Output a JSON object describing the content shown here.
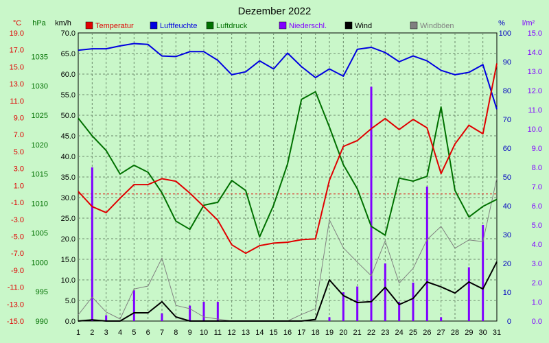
{
  "chart_data": {
    "type": "line",
    "title": "Dezember 2022",
    "x": [
      1,
      2,
      3,
      4,
      5,
      6,
      7,
      8,
      9,
      10,
      11,
      12,
      13,
      14,
      15,
      16,
      17,
      18,
      19,
      20,
      21,
      22,
      23,
      24,
      25,
      26,
      27,
      28,
      29,
      30,
      31
    ],
    "axes": {
      "temp": {
        "label": "°C",
        "min": -15,
        "max": 19,
        "ticks": [
          "-15.0",
          "-13.0",
          "-11.0",
          "-9.0",
          "-7.0",
          "-5.0",
          "-3.0",
          "-1.0",
          "1.0",
          "3.0",
          "5.0",
          "7.0",
          "9.0",
          "11.0",
          "13.0",
          "15.0",
          "17.0",
          "19.0"
        ]
      },
      "pressure": {
        "label": "hPa",
        "min": 990,
        "max": 1039,
        "ticks": [
          "990",
          "995",
          "1000",
          "1005",
          "1010",
          "1015",
          "1020",
          "1025",
          "1030",
          "1035"
        ]
      },
      "wind": {
        "label": "km/h",
        "min": 0,
        "max": 70,
        "ticks": [
          "0.0",
          "5.0",
          "10.0",
          "15.0",
          "20.0",
          "25.0",
          "30.0",
          "35.0",
          "40.0",
          "45.0",
          "50.0",
          "55.0",
          "60.0",
          "65.0",
          "70.0"
        ]
      },
      "humidity": {
        "label": "%",
        "min": 0,
        "max": 100,
        "ticks": [
          "0",
          "10",
          "20",
          "30",
          "40",
          "50",
          "60",
          "70",
          "80",
          "90",
          "100"
        ]
      },
      "precip": {
        "label": "l/m²",
        "min": 0,
        "max": 15,
        "ticks": [
          "0.0",
          "1.0",
          "2.0",
          "3.0",
          "4.0",
          "5.0",
          "6.0",
          "7.0",
          "8.0",
          "9.0",
          "10.0",
          "11.0",
          "12.0",
          "13.0",
          "14.0",
          "15.0"
        ]
      }
    },
    "legend": [
      "Temperatur",
      "Luftfeuchte",
      "Luftdruck",
      "Niederschl.",
      "Wind",
      "Windböen"
    ],
    "series": [
      {
        "name": "Temperatur",
        "axis": "temp",
        "color": "#e00000",
        "values": [
          0.3,
          -1.5,
          -2.2,
          -0.5,
          1.1,
          1.1,
          1.8,
          1.5,
          0.1,
          -1.5,
          -3.1,
          -6.0,
          -7.0,
          -6.1,
          -5.8,
          -5.7,
          -5.4,
          -5.3,
          1.6,
          5.6,
          6.3,
          7.7,
          8.9,
          7.6,
          8.8,
          7.8,
          2.4,
          5.9,
          8.1,
          7.1,
          15.4
        ]
      },
      {
        "name": "Luftfeuchte",
        "axis": "humidity",
        "color": "#0000e0",
        "values": [
          94,
          94.5,
          94.5,
          95.5,
          96.3,
          96,
          92,
          91.8,
          93.5,
          93.5,
          90.5,
          85.5,
          86.5,
          90.3,
          87.5,
          93,
          88.3,
          84.5,
          87.5,
          85,
          94.3,
          95,
          93.2,
          90,
          92,
          90.3,
          87,
          85.5,
          86.3,
          89,
          73.5
        ]
      },
      {
        "name": "Luftdruck",
        "axis": "pressure",
        "color": "#007000",
        "values": [
          1024.5,
          1021.5,
          1019,
          1015,
          1016.5,
          1015.3,
          1011.8,
          1007,
          1005.6,
          1009.7,
          1010.2,
          1013.9,
          1012.2,
          1004.3,
          1009.7,
          1016.7,
          1027.7,
          1029,
          1023,
          1016.6,
          1012.5,
          1006.1,
          1004.6,
          1014.3,
          1013.8,
          1014.6,
          1026.4,
          1012.2,
          1007.7,
          1009.5,
          1010.7
        ]
      },
      {
        "name": "Niederschl.",
        "axis": "precip",
        "color": "#8000ff",
        "values": [
          0,
          8.0,
          0.3,
          0,
          1.6,
          0,
          0.4,
          0,
          0.8,
          1.0,
          1.0,
          0,
          0,
          0,
          0,
          0,
          0,
          0,
          0.2,
          1.5,
          1.8,
          12.2,
          3.0,
          1.0,
          2.0,
          7.0,
          0.2,
          0,
          2.8,
          5.0,
          0
        ]
      },
      {
        "name": "Wind",
        "axis": "wind",
        "color": "#000000",
        "values": [
          0,
          0.3,
          0,
          0,
          2.0,
          2.0,
          4.7,
          1.0,
          0,
          0,
          0,
          0,
          0,
          0,
          0,
          0,
          0,
          0.4,
          10.0,
          6.2,
          4.5,
          4.7,
          8.2,
          4.0,
          5.5,
          9.5,
          8.3,
          6.8,
          9.5,
          7.8,
          14.4
        ]
      },
      {
        "name": "Windböen",
        "axis": "wind",
        "color": "#808080",
        "values": [
          1.5,
          5.8,
          2.2,
          0.5,
          7.8,
          8.5,
          15.3,
          3.8,
          3.0,
          1.0,
          0.5,
          0,
          0,
          0,
          0,
          0,
          1.6,
          3.0,
          24.6,
          17.8,
          14.3,
          11.0,
          19.5,
          9.2,
          12.8,
          19.8,
          23.0,
          17.7,
          19.7,
          19.3,
          34.7
        ]
      }
    ],
    "reference_line": {
      "axis": "temp",
      "value": 0,
      "color": "#e00000"
    },
    "grid": true
  }
}
